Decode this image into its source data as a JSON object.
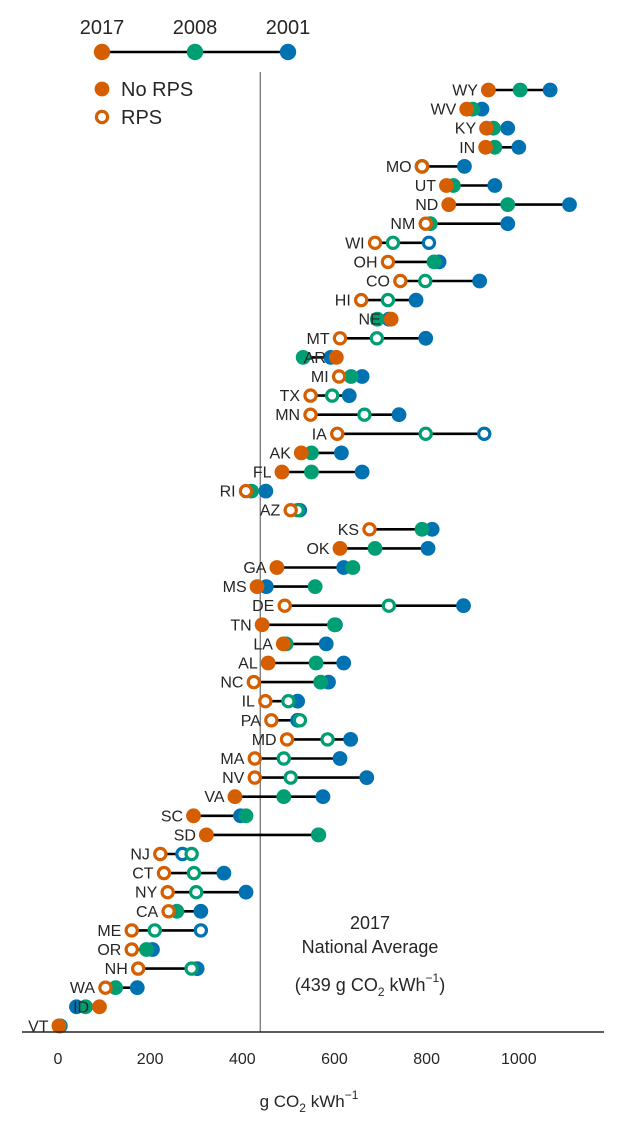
{
  "colors": {
    "y2001": "#0072b2",
    "y2008": "#009e73",
    "y2017": "#d55e00",
    "connector": "#000000",
    "reference_line": "#808080",
    "axis": "#262626"
  },
  "chart_data": {
    "type": "scatter",
    "subtype": "dumbbell",
    "xlabel_main": "g CO",
    "xlabel_sub": "2",
    "xlabel_rest": " kWh",
    "xlabel_sup": "−1",
    "xlim": [
      -80,
      1185
    ],
    "xticks": [
      0,
      200,
      400,
      600,
      800,
      1000
    ],
    "grid": false,
    "legend_years": {
      "labels": [
        "2017",
        "2008",
        "2001"
      ],
      "placement": "top-left"
    },
    "legend_markers": {
      "items": [
        {
          "label": "No RPS",
          "style": "filled"
        },
        {
          "label": "RPS",
          "style": "hollow"
        }
      ],
      "placement": "top-left"
    },
    "reference": {
      "value": 439,
      "line1": "2017",
      "line2": "National Average",
      "line3_a": "(439 g CO",
      "line3_sub": "2",
      "line3_b": " kWh",
      "line3_sup": "−1",
      "line3_c": ")"
    },
    "series_order": [
      "2001",
      "2008",
      "2017"
    ],
    "states": [
      {
        "state": "WY",
        "v2001": 1068,
        "v2008": 1003,
        "v2017": 934,
        "rps": [
          false,
          false,
          false
        ]
      },
      {
        "state": "WV",
        "v2001": 920,
        "v2008": 900,
        "v2017": 887,
        "rps": [
          false,
          false,
          false
        ]
      },
      {
        "state": "KY",
        "v2001": 976,
        "v2008": 945,
        "v2017": 930,
        "rps": [
          false,
          false,
          false
        ]
      },
      {
        "state": "IN",
        "v2001": 1000,
        "v2008": 948,
        "v2017": 928,
        "rps": [
          false,
          false,
          false
        ]
      },
      {
        "state": "MO",
        "v2001": 882,
        "v2008": 790,
        "v2017": 790,
        "rps": [
          false,
          false,
          true
        ]
      },
      {
        "state": "UT",
        "v2001": 948,
        "v2008": 858,
        "v2017": 843,
        "rps": [
          false,
          false,
          false
        ]
      },
      {
        "state": "ND",
        "v2001": 1110,
        "v2008": 976,
        "v2017": 848,
        "rps": [
          false,
          false,
          false
        ]
      },
      {
        "state": "NM",
        "v2001": 976,
        "v2008": 808,
        "v2017": 798,
        "rps": [
          false,
          false,
          true
        ]
      },
      {
        "state": "WI",
        "v2001": 805,
        "v2008": 727,
        "v2017": 688,
        "rps": [
          true,
          true,
          true
        ]
      },
      {
        "state": "OH",
        "v2001": 827,
        "v2008": 816,
        "v2017": 716,
        "rps": [
          false,
          false,
          true
        ]
      },
      {
        "state": "CO",
        "v2001": 915,
        "v2008": 797,
        "v2017": 743,
        "rps": [
          false,
          true,
          true
        ]
      },
      {
        "state": "HI",
        "v2001": 777,
        "v2008": 716,
        "v2017": 658,
        "rps": [
          false,
          true,
          true
        ]
      },
      {
        "state": "NE",
        "v2001": 718,
        "v2008": 693,
        "v2017": 723,
        "rps": [
          false,
          false,
          false
        ]
      },
      {
        "state": "MT",
        "v2001": 798,
        "v2008": 692,
        "v2017": 612,
        "rps": [
          false,
          true,
          true
        ]
      },
      {
        "state": "AR",
        "v2001": 592,
        "v2008": 532,
        "v2017": 604,
        "rps": [
          false,
          false,
          false
        ]
      },
      {
        "state": "MI",
        "v2001": 660,
        "v2008": 636,
        "v2017": 610,
        "rps": [
          false,
          false,
          true
        ]
      },
      {
        "state": "TX",
        "v2001": 632,
        "v2008": 595,
        "v2017": 548,
        "rps": [
          false,
          true,
          true
        ]
      },
      {
        "state": "MN",
        "v2001": 740,
        "v2008": 665,
        "v2017": 548,
        "rps": [
          false,
          true,
          true
        ]
      },
      {
        "state": "IA",
        "v2001": 925,
        "v2008": 798,
        "v2017": 606,
        "rps": [
          true,
          true,
          true
        ]
      },
      {
        "state": "AK",
        "v2001": 615,
        "v2008": 550,
        "v2017": 528,
        "rps": [
          false,
          false,
          false
        ]
      },
      {
        "state": "FL",
        "v2001": 660,
        "v2008": 550,
        "v2017": 486,
        "rps": [
          false,
          false,
          false
        ]
      },
      {
        "state": "RI",
        "v2001": 451,
        "v2008": 420,
        "v2017": 408,
        "rps": [
          false,
          false,
          true
        ]
      },
      {
        "state": "AZ",
        "v2001": 525,
        "v2008": 520,
        "v2017": 505,
        "rps": [
          true,
          true,
          true
        ]
      },
      {
        "state": "KS",
        "v2001": 812,
        "v2008": 790,
        "v2017": 676,
        "rps": [
          false,
          false,
          true
        ]
      },
      {
        "state": "OK",
        "v2001": 803,
        "v2008": 688,
        "v2017": 612,
        "rps": [
          false,
          false,
          false
        ]
      },
      {
        "state": "GA",
        "v2001": 620,
        "v2008": 640,
        "v2017": 475,
        "rps": [
          false,
          false,
          false
        ]
      },
      {
        "state": "MS",
        "v2001": 452,
        "v2008": 558,
        "v2017": 432,
        "rps": [
          false,
          false,
          false
        ]
      },
      {
        "state": "DE",
        "v2001": 880,
        "v2008": 718,
        "v2017": 492,
        "rps": [
          false,
          true,
          true
        ]
      },
      {
        "state": "TN",
        "v2001": 602,
        "v2008": 600,
        "v2017": 443,
        "rps": [
          false,
          false,
          false
        ]
      },
      {
        "state": "LA",
        "v2001": 582,
        "v2008": 495,
        "v2017": 489,
        "rps": [
          false,
          false,
          false
        ]
      },
      {
        "state": "AL",
        "v2001": 620,
        "v2008": 560,
        "v2017": 456,
        "rps": [
          false,
          false,
          false
        ]
      },
      {
        "state": "NC",
        "v2001": 587,
        "v2008": 570,
        "v2017": 425,
        "rps": [
          false,
          false,
          true
        ]
      },
      {
        "state": "IL",
        "v2001": 520,
        "v2008": 500,
        "v2017": 450,
        "rps": [
          false,
          true,
          true
        ]
      },
      {
        "state": "PA",
        "v2001": 520,
        "v2008": 525,
        "v2017": 463,
        "rps": [
          false,
          true,
          true
        ]
      },
      {
        "state": "MD",
        "v2001": 635,
        "v2008": 585,
        "v2017": 497,
        "rps": [
          false,
          true,
          true
        ]
      },
      {
        "state": "MA",
        "v2001": 612,
        "v2008": 490,
        "v2017": 427,
        "rps": [
          false,
          true,
          true
        ]
      },
      {
        "state": "NV",
        "v2001": 670,
        "v2008": 505,
        "v2017": 427,
        "rps": [
          false,
          true,
          true
        ]
      },
      {
        "state": "VA",
        "v2001": 575,
        "v2008": 490,
        "v2017": 384,
        "rps": [
          false,
          false,
          false
        ]
      },
      {
        "state": "SC",
        "v2001": 396,
        "v2008": 408,
        "v2017": 294,
        "rps": [
          false,
          false,
          false
        ]
      },
      {
        "state": "SD",
        "v2001": 565,
        "v2008": 566,
        "v2017": 322,
        "rps": [
          false,
          false,
          false
        ]
      },
      {
        "state": "NJ",
        "v2001": 270,
        "v2008": 290,
        "v2017": 222,
        "rps": [
          true,
          true,
          true
        ]
      },
      {
        "state": "CT",
        "v2001": 360,
        "v2008": 295,
        "v2017": 230,
        "rps": [
          false,
          true,
          true
        ]
      },
      {
        "state": "NY",
        "v2001": 408,
        "v2008": 300,
        "v2017": 238,
        "rps": [
          false,
          true,
          true
        ]
      },
      {
        "state": "CA",
        "v2001": 310,
        "v2008": 258,
        "v2017": 240,
        "rps": [
          false,
          false,
          true
        ]
      },
      {
        "state": "ME",
        "v2001": 310,
        "v2008": 210,
        "v2017": 160,
        "rps": [
          true,
          true,
          true
        ]
      },
      {
        "state": "OR",
        "v2001": 205,
        "v2008": 192,
        "v2017": 160,
        "rps": [
          false,
          false,
          true
        ]
      },
      {
        "state": "NH",
        "v2001": 302,
        "v2008": 290,
        "v2017": 174,
        "rps": [
          false,
          true,
          true
        ]
      },
      {
        "state": "WA",
        "v2001": 172,
        "v2008": 125,
        "v2017": 103,
        "rps": [
          false,
          false,
          true
        ]
      },
      {
        "state": "ID",
        "v2001": 40,
        "v2008": 60,
        "v2017": 90,
        "rps": [
          false,
          false,
          false
        ]
      },
      {
        "state": "VT",
        "v2001": 5,
        "v2008": 3,
        "v2017": 2,
        "rps": [
          false,
          false,
          false
        ]
      }
    ]
  }
}
